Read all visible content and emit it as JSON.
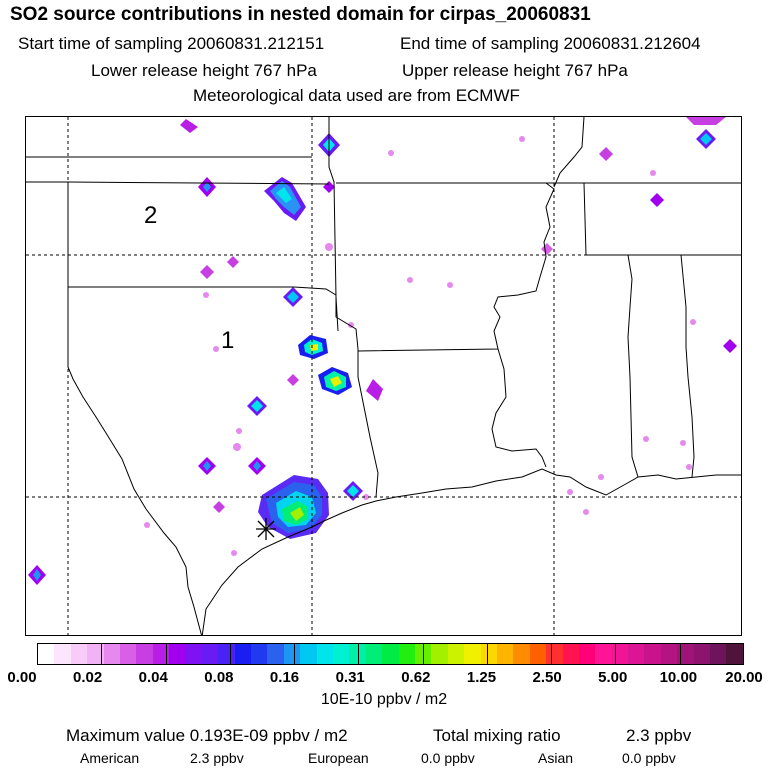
{
  "header": {
    "title": "SO2 source contributions in nested domain for cirpas_20060831",
    "start_time": "Start time of sampling 20060831.212151",
    "end_time": "End time of sampling 20060831.212604",
    "lower_release": "Lower release height  767 hPa",
    "upper_release": "Upper release height  767 hPa",
    "met_data": "Meteorological data used are from ECMWF"
  },
  "map": {
    "region_labels": [
      "2",
      "1"
    ]
  },
  "colorbar": {
    "tick_labels": [
      "0.00",
      "0.02",
      "0.04",
      "0.08",
      "0.16",
      "0.31",
      "0.62",
      "1.25",
      "2.50",
      "5.00",
      "10.00",
      "20.00"
    ],
    "units": "10E-10 ppbv / m2",
    "colors": [
      "#ffffff",
      "#fde6fd",
      "#f8ccf8",
      "#f2b2f4",
      "#e589ee",
      "#d95fe6",
      "#c73fe2",
      "#b81ee6",
      "#a100f0",
      "#7f12f2",
      "#6a1bf5",
      "#4b22f5",
      "#1a1ef0",
      "#213af0",
      "#2a62ee",
      "#1e96f4",
      "#00c8f0",
      "#00e4ec",
      "#00f0d2",
      "#00f0a8",
      "#00ee78",
      "#00ec44",
      "#22ee10",
      "#66f000",
      "#a2f000",
      "#ccf200",
      "#f0f000",
      "#fad800",
      "#ffb400",
      "#ff8c00",
      "#ff6000",
      "#ff3030",
      "#ff1450",
      "#ff0078",
      "#ff1496",
      "#f01496",
      "#dc1496",
      "#c8148c",
      "#b41482",
      "#a01478",
      "#8c146e",
      "#6e145a",
      "#50143c"
    ]
  },
  "footer": {
    "max_value": "Maximum value  0.193E-09 ppbv / m2",
    "total_label": "Total mixing ratio",
    "total_value": "2.3 ppbv",
    "american_label": "American",
    "american_value": "2.3 ppbv",
    "european_label": "European",
    "european_value": "0.0 ppbv",
    "asian_label": "Asian",
    "asian_value": "0.0 ppbv"
  }
}
